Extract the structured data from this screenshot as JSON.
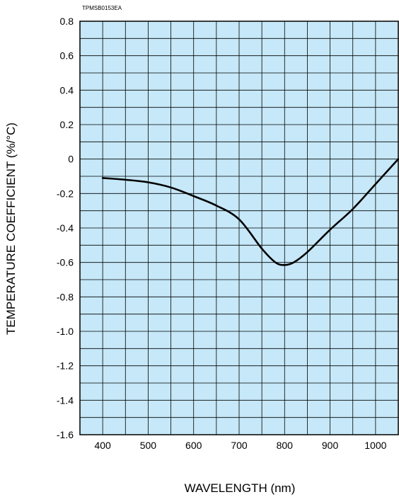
{
  "figure_code": "TPMSB0153EA",
  "chart_data": {
    "type": "line",
    "xlabel": "WAVELENGTH (nm)",
    "ylabel": "TEMPERATURE COEFFICIENT (%/°C)",
    "xlim": [
      350,
      1050
    ],
    "ylim": [
      -1.6,
      0.8
    ],
    "x_ticks": [
      400,
      500,
      600,
      700,
      800,
      900,
      1000
    ],
    "x_tick_labels": [
      "400",
      "500",
      "600",
      "700",
      "800",
      "900",
      "1000"
    ],
    "y_ticks": [
      0.8,
      0.6,
      0.4,
      0.2,
      0,
      -0.2,
      -0.4,
      -0.6,
      -0.8,
      -1.0,
      -1.2,
      -1.4,
      -1.6
    ],
    "y_tick_labels": [
      "0.8",
      "0.6",
      "0.4",
      "0.2",
      "0",
      "-0.2",
      "-0.4",
      "-0.6",
      "-0.8",
      "-1.0",
      "-1.2",
      "-1.4",
      "-1.6"
    ],
    "x_grid_step": 50,
    "y_grid_step": 0.1,
    "grid": true,
    "series": [
      {
        "x": [
          400,
          450,
          500,
          550,
          600,
          650,
          700,
          750,
          780,
          800,
          820,
          850,
          900,
          950,
          1000,
          1050
        ],
        "y": [
          -0.11,
          -0.12,
          -0.135,
          -0.165,
          -0.215,
          -0.27,
          -0.35,
          -0.52,
          -0.6,
          -0.615,
          -0.6,
          -0.54,
          -0.41,
          -0.29,
          -0.145,
          0.0
        ]
      }
    ],
    "colors": {
      "plot_background": "#c6e8f8",
      "grid": "#000000",
      "line": "#000000"
    }
  }
}
